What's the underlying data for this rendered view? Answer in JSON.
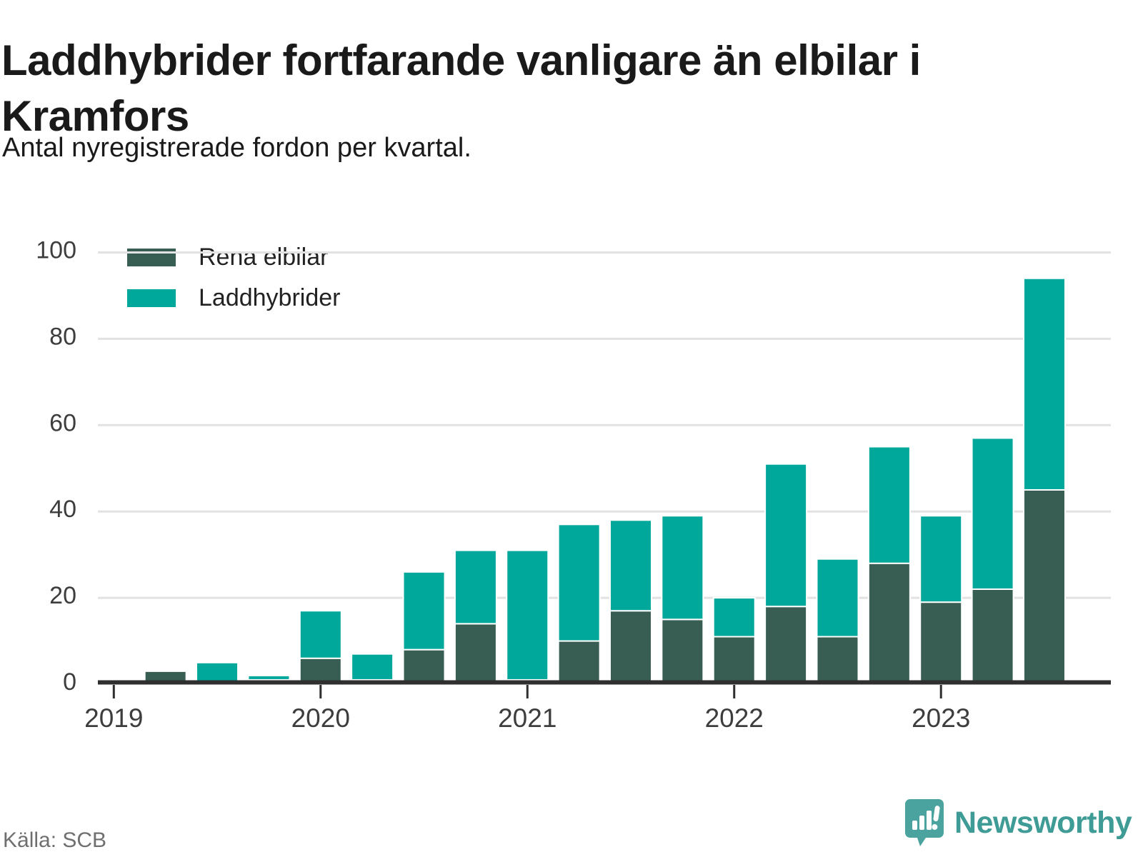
{
  "header": {
    "title_lines": [
      "Laddhybrider fortfarande vanligare än elbilar i",
      "Kramfors"
    ],
    "subtitle": "Antal nyregistrerade fordon per kvartal."
  },
  "legend": {
    "items": [
      {
        "label": "Rena elbilar",
        "color": "#385e54"
      },
      {
        "label": "Laddhybrider",
        "color": "#00a79b"
      }
    ]
  },
  "chart_data": {
    "type": "bar",
    "stacked": true,
    "x": [
      "2019K1",
      "2019K2",
      "2019K3",
      "2019K4",
      "2020K1",
      "2020K2",
      "2020K3",
      "2020K4",
      "2021K1",
      "2021K2",
      "2021K3",
      "2021K4",
      "2022K1",
      "2022K2",
      "2022K3",
      "2022K4",
      "2023K1",
      "2023K2",
      "2023K3"
    ],
    "series": [
      {
        "name": "Rena elbilar",
        "color": "#385e54",
        "values": [
          0,
          3,
          0,
          1,
          6,
          1,
          8,
          14,
          1,
          10,
          17,
          15,
          11,
          18,
          11,
          28,
          19,
          22,
          45
        ]
      },
      {
        "name": "Laddhybrider",
        "color": "#00a79b",
        "values": [
          0,
          0,
          5,
          1,
          11,
          6,
          18,
          17,
          30,
          27,
          21,
          24,
          9,
          33,
          18,
          27,
          20,
          35,
          49
        ]
      }
    ],
    "stack_totals": [
      0,
      3,
      5,
      2,
      17,
      7,
      26,
      31,
      31,
      37,
      38,
      39,
      20,
      51,
      29,
      55,
      39,
      57,
      94
    ],
    "title": "Laddhybrider fortfarande vanligare än elbilar i Kramfors",
    "xlabel": "",
    "ylabel": "",
    "x_tick_labels": [
      "2019",
      "2020",
      "2021",
      "2022",
      "2023"
    ],
    "x_tick_indices": [
      0,
      4,
      8,
      12,
      16
    ],
    "y_ticks": [
      0,
      20,
      40,
      60,
      80,
      100
    ],
    "ylim": [
      0,
      100
    ],
    "grid": true,
    "legend_position": "top-left"
  },
  "style": {
    "grid_color": "#e2e2e2",
    "axis_color": "#2f2f2f",
    "tick_label_color": "#3d3d3d",
    "bar_stroke": "#ffffff"
  },
  "footer": {
    "source": "Källa: SCB",
    "brand": "Newsworthy",
    "brand_color": "#4aa39e"
  }
}
